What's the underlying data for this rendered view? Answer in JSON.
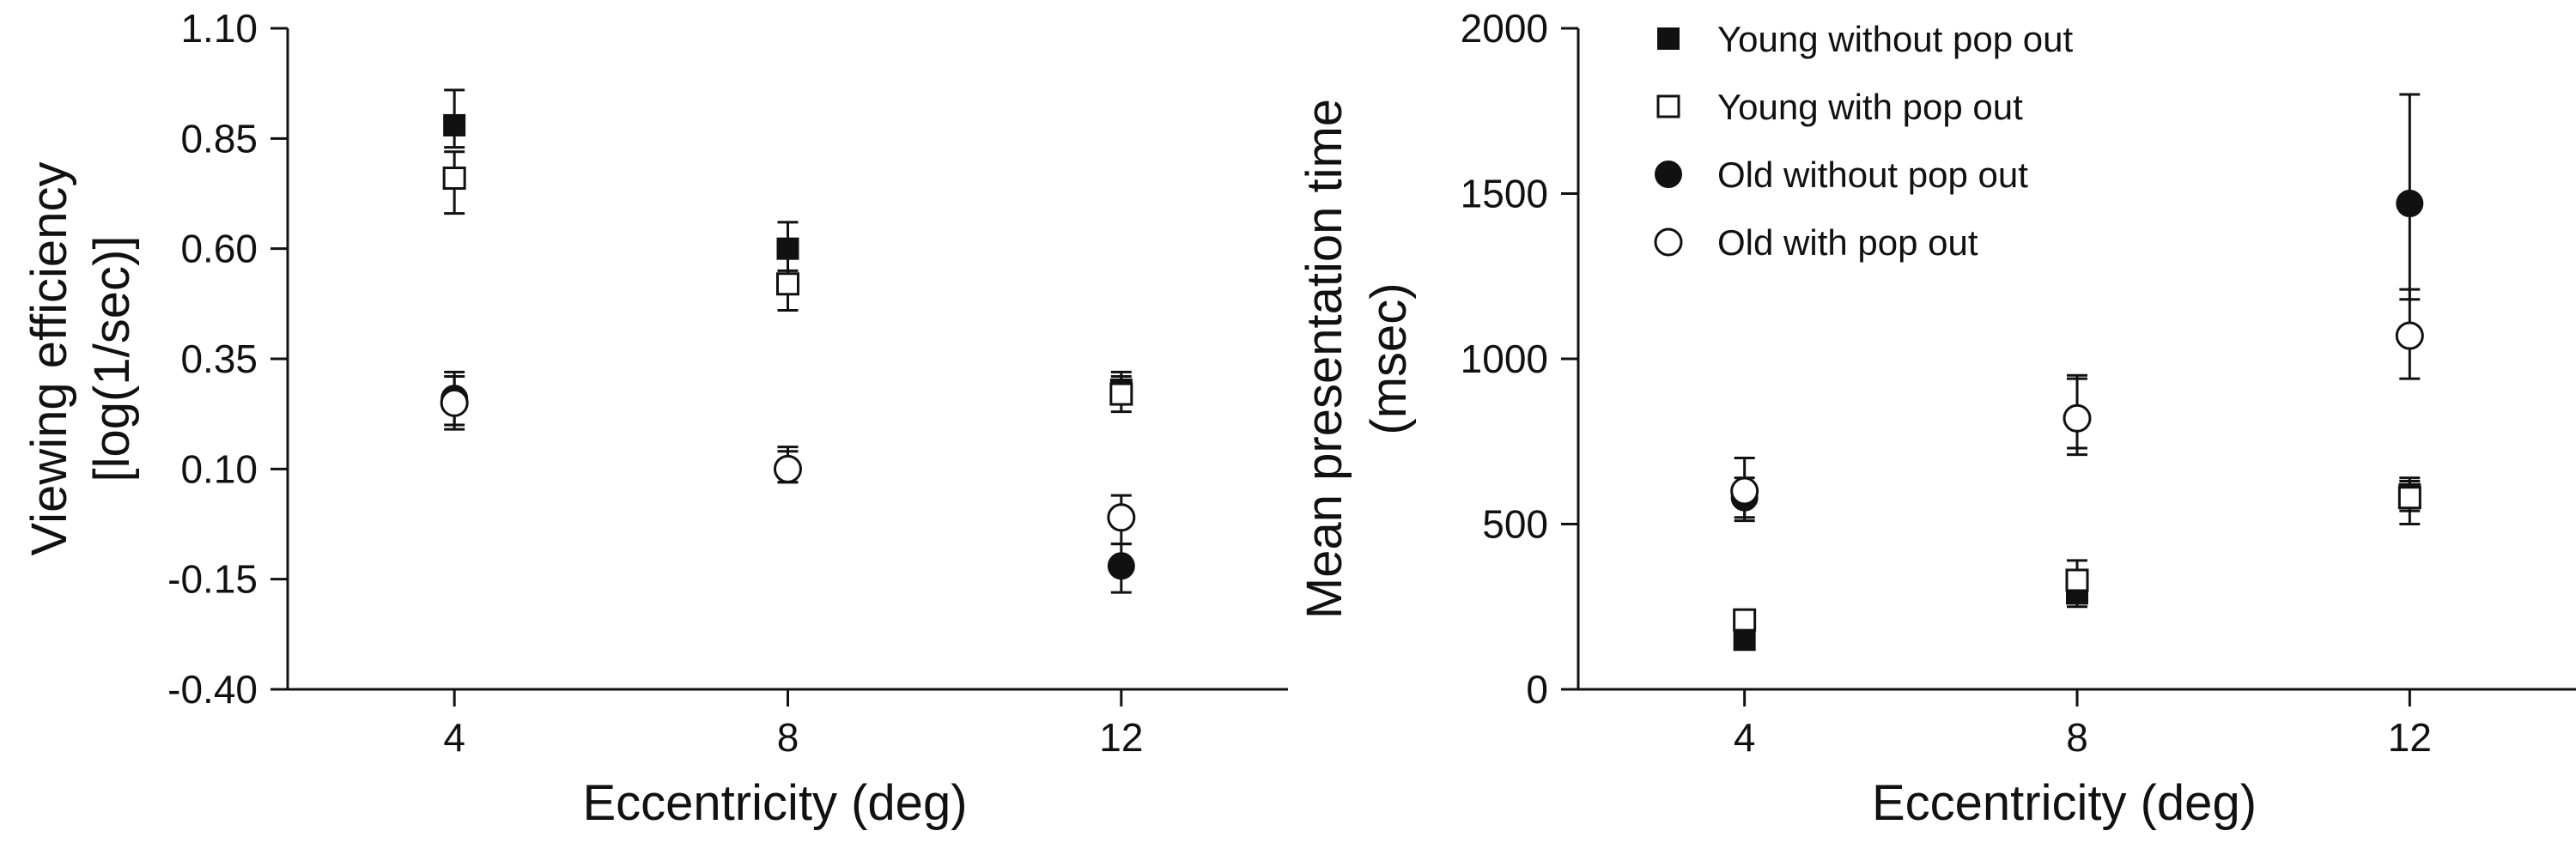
{
  "chart_data": [
    {
      "type": "scatter",
      "title": "",
      "xlabel": "Eccentricity (deg)",
      "ylabel_lines": [
        "Viewing efficiency",
        "[log(1/sec)]"
      ],
      "x_ticks": [
        "4",
        "8",
        "12"
      ],
      "xlim": [
        2,
        14
      ],
      "y_ticks": [
        "1.10",
        "0.85",
        "0.60",
        "0.35",
        "0.10",
        "-0.15",
        "-0.40"
      ],
      "ylim": [
        -0.4,
        1.1
      ],
      "grid": false,
      "series": [
        {
          "name": "Young without pop out",
          "marker": "filled-square",
          "points": [
            {
              "x": 4,
              "y": 0.88,
              "lo": 0.83,
              "hi": 0.96
            },
            {
              "x": 8,
              "y": 0.6,
              "lo": 0.55,
              "hi": 0.66
            },
            {
              "x": 12,
              "y": 0.28,
              "lo": 0.25,
              "hi": 0.32
            }
          ]
        },
        {
          "name": "Young with pop out",
          "marker": "open-square",
          "points": [
            {
              "x": 4,
              "y": 0.76,
              "lo": 0.68,
              "hi": 0.82
            },
            {
              "x": 8,
              "y": 0.52,
              "lo": 0.46,
              "hi": 0.58
            },
            {
              "x": 12,
              "y": 0.27,
              "lo": 0.23,
              "hi": 0.31
            }
          ]
        },
        {
          "name": "Old without pop out",
          "marker": "filled-circle",
          "points": [
            {
              "x": 4,
              "y": 0.26,
              "lo": 0.2,
              "hi": 0.32
            },
            {
              "x": 8,
              "y": 0.1,
              "lo": 0.07,
              "hi": 0.15
            },
            {
              "x": 12,
              "y": -0.12,
              "lo": -0.18,
              "hi": -0.07
            }
          ]
        },
        {
          "name": "Old with pop out",
          "marker": "open-circle",
          "points": [
            {
              "x": 4,
              "y": 0.25,
              "lo": 0.19,
              "hi": 0.31
            },
            {
              "x": 8,
              "y": 0.1,
              "lo": 0.07,
              "hi": 0.14
            },
            {
              "x": 12,
              "y": -0.01,
              "lo": -0.07,
              "hi": 0.04
            }
          ]
        }
      ]
    },
    {
      "type": "scatter",
      "title": "",
      "xlabel": "Eccentricity (deg)",
      "ylabel_lines": [
        "Mean presentation time",
        "(msec)"
      ],
      "x_ticks": [
        "4",
        "8",
        "12"
      ],
      "xlim": [
        2,
        14
      ],
      "y_ticks": [
        "2000",
        "1500",
        "1000",
        "500",
        "0"
      ],
      "ylim": [
        0,
        2000
      ],
      "grid": false,
      "legend_position": "top",
      "series": [
        {
          "name": "Young without pop out",
          "marker": "filled-square",
          "points": [
            {
              "x": 4,
              "y": 150,
              "lo": 130,
              "hi": 170
            },
            {
              "x": 8,
              "y": 290,
              "lo": 250,
              "hi": 340
            },
            {
              "x": 12,
              "y": 590,
              "lo": 540,
              "hi": 640
            }
          ]
        },
        {
          "name": "Young with pop out",
          "marker": "open-square",
          "points": [
            {
              "x": 4,
              "y": 210,
              "lo": 180,
              "hi": 240
            },
            {
              "x": 8,
              "y": 330,
              "lo": 270,
              "hi": 390
            },
            {
              "x": 12,
              "y": 580,
              "lo": 500,
              "hi": 630
            }
          ]
        },
        {
          "name": "Old without pop out",
          "marker": "filled-circle",
          "points": [
            {
              "x": 4,
              "y": 580,
              "lo": 520,
              "hi": 640
            },
            {
              "x": 8,
              "y": 820,
              "lo": 730,
              "hi": 950
            },
            {
              "x": 12,
              "y": 1470,
              "lo": 1180,
              "hi": 1800
            }
          ]
        },
        {
          "name": "Old with pop out",
          "marker": "open-circle",
          "points": [
            {
              "x": 4,
              "y": 600,
              "lo": 510,
              "hi": 700
            },
            {
              "x": 8,
              "y": 820,
              "lo": 710,
              "hi": 940
            },
            {
              "x": 12,
              "y": 1070,
              "lo": 940,
              "hi": 1210
            }
          ]
        }
      ]
    }
  ]
}
